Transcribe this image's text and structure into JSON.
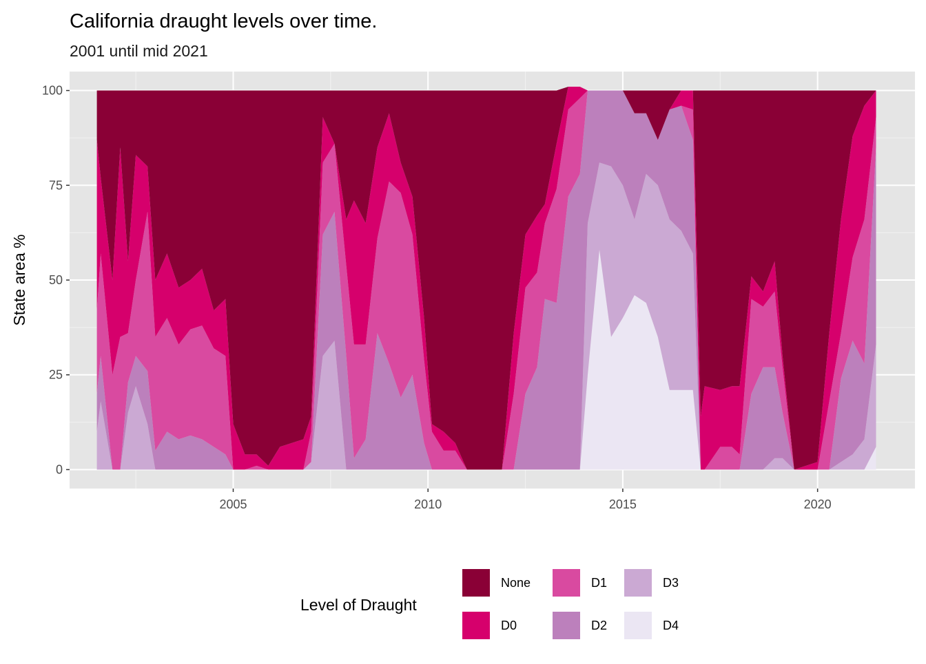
{
  "chart_data": {
    "type": "area",
    "stacked": true,
    "title": "California draught levels over time.",
    "subtitle": "2001 until mid 2021",
    "xlabel": "",
    "ylabel": "State area %",
    "xlim": [
      2000.8,
      2022.5
    ],
    "ylim": [
      -5,
      105
    ],
    "x_ticks": [
      2005,
      2010,
      2015,
      2020
    ],
    "y_ticks": [
      0,
      25,
      50,
      75,
      100
    ],
    "grid": true,
    "legend_position": "bottom",
    "legend_title": "Level of Draught",
    "colors": {
      "None": "#8a0036",
      "D0": "#d6006c",
      "D1": "#d94aa0",
      "D2": "#bc80bc",
      "D3": "#cba9d3",
      "D4": "#ebe6f3"
    },
    "legend_items": [
      "None",
      "D0",
      "D1",
      "D2",
      "D3",
      "D4"
    ],
    "x": [
      2001.5,
      2001.6,
      2001.9,
      2002.1,
      2002.3,
      2002.5,
      2002.8,
      2003.0,
      2003.3,
      2003.6,
      2003.9,
      2004.2,
      2004.5,
      2004.8,
      2005.0,
      2005.3,
      2005.6,
      2005.9,
      2006.2,
      2006.5,
      2006.8,
      2007.0,
      2007.3,
      2007.6,
      2007.9,
      2008.1,
      2008.4,
      2008.7,
      2009.0,
      2009.3,
      2009.6,
      2009.9,
      2010.1,
      2010.4,
      2010.7,
      2011.0,
      2011.3,
      2011.6,
      2011.9,
      2012.2,
      2012.5,
      2012.8,
      2013.0,
      2013.3,
      2013.6,
      2013.9,
      2014.1,
      2014.4,
      2014.7,
      2015.0,
      2015.3,
      2015.6,
      2015.9,
      2016.2,
      2016.5,
      2016.8,
      2017.0,
      2017.1,
      2017.5,
      2017.8,
      2018.0,
      2018.3,
      2018.6,
      2018.9,
      2019.1,
      2019.4,
      2019.7,
      2020.0,
      2020.3,
      2020.6,
      2020.9,
      2021.2,
      2021.5
    ],
    "series": [
      {
        "name": "D4",
        "values": [
          0,
          0,
          0,
          0,
          0,
          0,
          0,
          0,
          0,
          0,
          0,
          0,
          0,
          0,
          0,
          0,
          0,
          0,
          0,
          0,
          0,
          0,
          0,
          0,
          0,
          0,
          0,
          0,
          0,
          0,
          0,
          0,
          0,
          0,
          0,
          0,
          0,
          0,
          0,
          0,
          0,
          0,
          0,
          0,
          0,
          0,
          25,
          58,
          35,
          40,
          46,
          44,
          35,
          21,
          21,
          21,
          0,
          0,
          0,
          0,
          0,
          0,
          0,
          0,
          0,
          0,
          0,
          0,
          0,
          0,
          0,
          0,
          6
        ]
      },
      {
        "name": "D3",
        "values": [
          10,
          18,
          0,
          0,
          15,
          22,
          12,
          0,
          0,
          0,
          0,
          0,
          0,
          0,
          0,
          0,
          0,
          0,
          0,
          0,
          0,
          2,
          30,
          34,
          0,
          0,
          0,
          0,
          0,
          0,
          0,
          0,
          0,
          0,
          0,
          0,
          0,
          0,
          0,
          0,
          0,
          0,
          0,
          0,
          0,
          0,
          40,
          23,
          45,
          35,
          20,
          34,
          40,
          45,
          42,
          36,
          0,
          0,
          0,
          0,
          0,
          0,
          0,
          3,
          3,
          0,
          0,
          0,
          0,
          2,
          4,
          8,
          27
        ]
      },
      {
        "name": "D2",
        "values": [
          10,
          12,
          0,
          0,
          8,
          8,
          14,
          5,
          10,
          8,
          9,
          8,
          6,
          4,
          0,
          0,
          0,
          0,
          0,
          0,
          0,
          0,
          32,
          34,
          30,
          3,
          8,
          36,
          28,
          19,
          25,
          7,
          0,
          0,
          0,
          0,
          0,
          0,
          0,
          0,
          20,
          27,
          45,
          44,
          72,
          78,
          35,
          19,
          20,
          25,
          28,
          16,
          12,
          29,
          33,
          30,
          0,
          0,
          0,
          0,
          0,
          20,
          27,
          24,
          12,
          0,
          0,
          0,
          0,
          22,
          30,
          20,
          52
        ]
      },
      {
        "name": "D1",
        "values": [
          22,
          27,
          25,
          35,
          13,
          20,
          42,
          30,
          30,
          25,
          28,
          30,
          26,
          26,
          0,
          0,
          1,
          0,
          0,
          0,
          0,
          8,
          19,
          18,
          24,
          30,
          25,
          25,
          48,
          54,
          37,
          22,
          10,
          5,
          5,
          0,
          0,
          0,
          0,
          20,
          28,
          25,
          20,
          30,
          23,
          20,
          0,
          0,
          0,
          0,
          0,
          0,
          0,
          0,
          0,
          8,
          0,
          0,
          6,
          6,
          4,
          25,
          16,
          20,
          12,
          0,
          0,
          0,
          18,
          12,
          22,
          38,
          8
        ]
      },
      {
        "name": "D0",
        "values": [
          45,
          20,
          25,
          50,
          19,
          33,
          12,
          15,
          17,
          15,
          13,
          15,
          10,
          15,
          12,
          4,
          3,
          1,
          6,
          7,
          8,
          4,
          12,
          0,
          12,
          38,
          32,
          24,
          18,
          8,
          10,
          11,
          2,
          5,
          2,
          0,
          0,
          0,
          0,
          16,
          14,
          15,
          5,
          12,
          6,
          3,
          0,
          0,
          0,
          0,
          0,
          0,
          0,
          0,
          4,
          5,
          14,
          22,
          15,
          16,
          18,
          6,
          4,
          8,
          3,
          0,
          1,
          2,
          18,
          30,
          32,
          30,
          7
        ]
      },
      {
        "name": "None",
        "values": [
          13,
          23,
          50,
          15,
          45,
          17,
          20,
          50,
          43,
          52,
          50,
          47,
          58,
          55,
          88,
          96,
          96,
          99,
          94,
          93,
          92,
          86,
          7,
          14,
          34,
          29,
          35,
          15,
          6,
          19,
          28,
          60,
          88,
          90,
          93,
          100,
          100,
          100,
          100,
          64,
          38,
          33,
          30,
          14,
          0,
          0,
          0,
          0,
          0,
          0,
          6,
          6,
          13,
          5,
          0,
          0,
          86,
          78,
          79,
          78,
          78,
          49,
          53,
          45,
          70,
          100,
          99,
          98,
          64,
          34,
          12,
          4,
          0
        ]
      }
    ]
  }
}
